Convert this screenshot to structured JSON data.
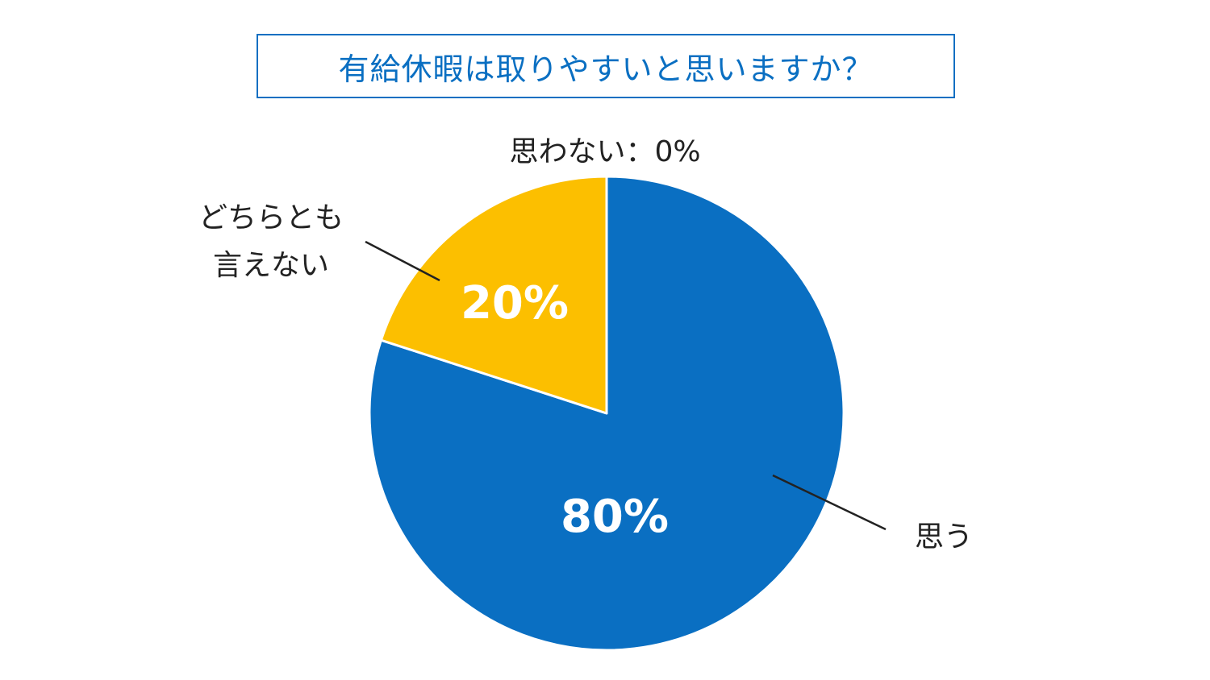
{
  "chart_data": {
    "type": "pie",
    "title": "有給休暇は取りやすいと思いますか？",
    "slices": [
      {
        "label": "思う",
        "value": 80,
        "value_label": "80%",
        "color": "#0a6fc2"
      },
      {
        "label": "どちらとも言えない",
        "label_lines": [
          "どちらとも",
          "言えない"
        ],
        "value": 20,
        "value_label": "20%",
        "color": "#fcbf00"
      },
      {
        "label": "思わない",
        "value": 0,
        "value_label": "0%",
        "color": "#d9d9d9"
      }
    ],
    "zero_slice_callout": "思わない：0%",
    "start_angle": "12 o'clock",
    "direction": "clockwise",
    "legend": "none (callout labels)"
  }
}
